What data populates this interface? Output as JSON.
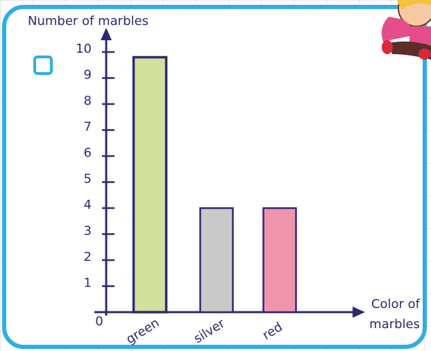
{
  "chart_data": {
    "type": "bar",
    "ylabel": "Number of marbles",
    "xlabel": "Color of marbles",
    "categories": [
      "green",
      "silver",
      "red"
    ],
    "values": [
      9.8,
      4,
      4
    ],
    "colors": [
      "#d3e09c",
      "#c9c9c9",
      "#f094ad"
    ],
    "ylim": [
      0,
      10.8
    ],
    "yticks": [
      0,
      1,
      2,
      3,
      4,
      5,
      6,
      7,
      8,
      9,
      10
    ]
  }
}
